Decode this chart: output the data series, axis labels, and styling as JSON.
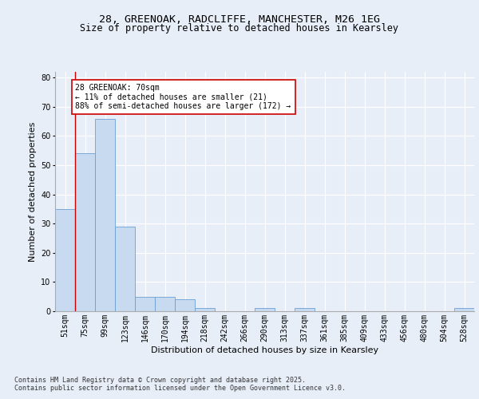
{
  "title_line1": "28, GREENOAK, RADCLIFFE, MANCHESTER, M26 1EG",
  "title_line2": "Size of property relative to detached houses in Kearsley",
  "xlabel": "Distribution of detached houses by size in Kearsley",
  "ylabel": "Number of detached properties",
  "categories": [
    "51sqm",
    "75sqm",
    "99sqm",
    "123sqm",
    "146sqm",
    "170sqm",
    "194sqm",
    "218sqm",
    "242sqm",
    "266sqm",
    "290sqm",
    "313sqm",
    "337sqm",
    "361sqm",
    "385sqm",
    "409sqm",
    "433sqm",
    "456sqm",
    "480sqm",
    "504sqm",
    "528sqm"
  ],
  "values": [
    35,
    54,
    66,
    29,
    5,
    5,
    4,
    1,
    0,
    0,
    1,
    0,
    1,
    0,
    0,
    0,
    0,
    0,
    0,
    0,
    1
  ],
  "bar_color": "#c8daf0",
  "bar_edge_color": "#6b9fd4",
  "annotation_text": "28 GREENOAK: 70sqm\n← 11% of detached houses are smaller (21)\n88% of semi-detached houses are larger (172) →",
  "vline_color": "#cc0000",
  "vline_x": 0.5,
  "ylim": [
    0,
    82
  ],
  "yticks": [
    0,
    10,
    20,
    30,
    40,
    50,
    60,
    70,
    80
  ],
  "footer_line1": "Contains HM Land Registry data © Crown copyright and database right 2025.",
  "footer_line2": "Contains public sector information licensed under the Open Government Licence v3.0.",
  "bg_color": "#e8eef8",
  "plot_bg_color": "#e8eef8",
  "grid_color": "#ffffff",
  "annotation_box_color": "white",
  "annotation_box_edgecolor": "#cc0000",
  "title_fontsize": 9.5,
  "subtitle_fontsize": 8.5,
  "axis_label_fontsize": 8,
  "tick_fontsize": 7,
  "annotation_fontsize": 7,
  "footer_fontsize": 6
}
